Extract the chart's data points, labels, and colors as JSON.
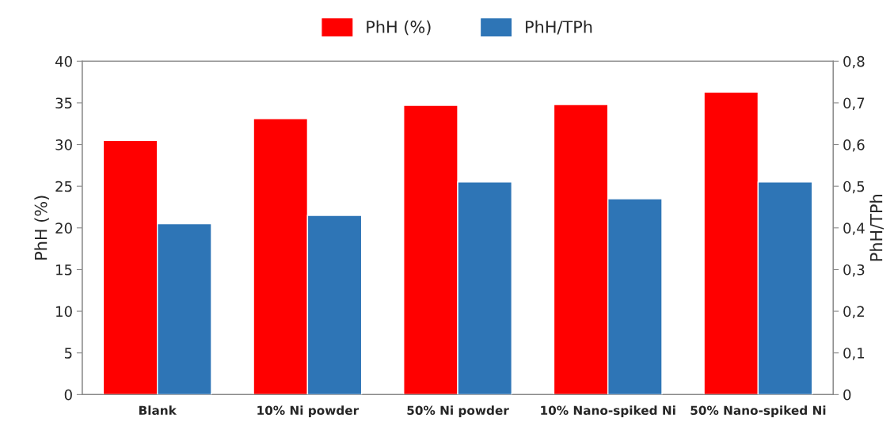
{
  "chart_data": {
    "type": "bar",
    "categories": [
      "Blank",
      "10% Ni powder",
      "50% Ni powder",
      "10% Nano-spiked Ni",
      "50% Nano-spiked Ni"
    ],
    "series": [
      {
        "name": "PhH (%)",
        "color": "#ff0000",
        "values": [
          30.5,
          33.1,
          34.7,
          34.8,
          36.3
        ]
      },
      {
        "name": "PhH/TPh",
        "color": "#2e75b6",
        "values": [
          0.41,
          0.43,
          0.51,
          0.47,
          0.51
        ],
        "axis": "y2"
      }
    ],
    "ylabel": "PhH (%)",
    "y2label": "PhH/TPh",
    "ylim": [
      0,
      40
    ],
    "yticks": [
      0,
      5,
      10,
      15,
      20,
      25,
      30,
      35,
      40
    ],
    "y2lim": [
      0,
      0.8
    ],
    "y2ticks": [
      0,
      {
        "value": 0.1,
        "label": "0,1"
      },
      {
        "value": 0.2,
        "label": "0,2"
      },
      {
        "value": 0.3,
        "label": "0,3"
      },
      {
        "value": 0.4,
        "label": "0,4"
      },
      {
        "value": 0.5,
        "label": "0,5"
      },
      {
        "value": 0.6,
        "label": "0,6"
      },
      {
        "value": 0.7,
        "label": "0,7"
      },
      {
        "value": 0.8,
        "label": "0,8"
      }
    ],
    "grid": false,
    "legend": "top"
  }
}
